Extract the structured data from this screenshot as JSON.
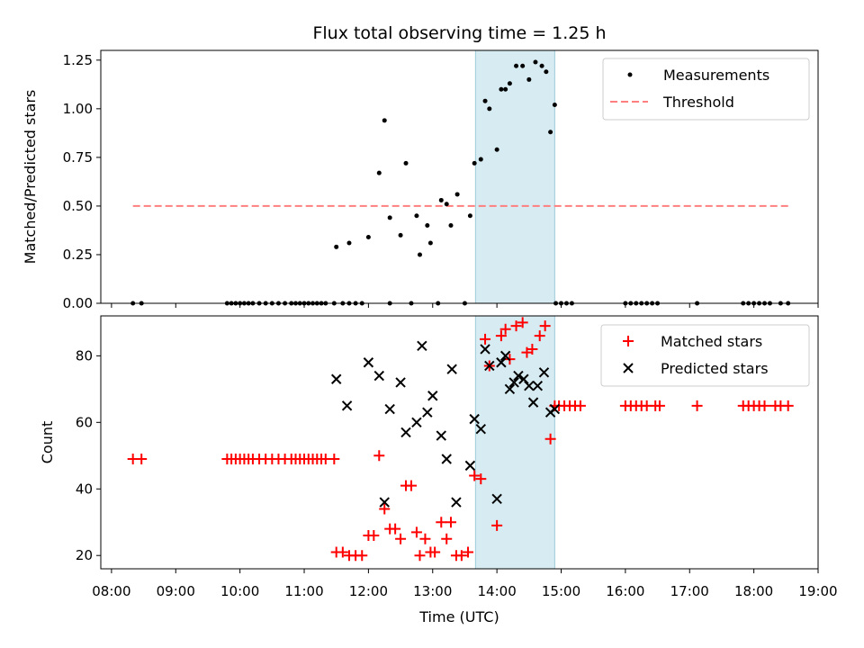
{
  "chart_data": [
    {
      "type": "scatter",
      "title": "Flux total observing time = 1.25 h",
      "xlabel": "",
      "ylabel": "Matched/Predicted stars",
      "xlim": [
        "08:00",
        "19:00"
      ],
      "ylim": [
        0,
        1.3
      ],
      "xticks": [
        "08:00",
        "09:00",
        "10:00",
        "11:00",
        "12:00",
        "13:00",
        "14:00",
        "15:00",
        "16:00",
        "17:00",
        "18:00",
        "19:00"
      ],
      "yticks": [
        "0.00",
        "0.25",
        "0.50",
        "0.75",
        "1.00",
        "1.25"
      ],
      "shaded_region": {
        "start": "13:40",
        "end": "14:54",
        "color": "#add8e6"
      },
      "legend_position": "top-right",
      "threshold": {
        "name": "Threshold",
        "value": 0.5,
        "x_start": "08:20",
        "x_end": "18:32",
        "color": "#ff7f7f"
      },
      "series": [
        {
          "name": "Measurements",
          "color": "#000000",
          "points": [
            [
              "08:20",
              0
            ],
            [
              "08:28",
              0
            ],
            [
              "09:48",
              0
            ],
            [
              "09:52",
              0
            ],
            [
              "09:56",
              0
            ],
            [
              "10:00",
              0
            ],
            [
              "10:04",
              0
            ],
            [
              "10:08",
              0
            ],
            [
              "10:12",
              0
            ],
            [
              "10:18",
              0
            ],
            [
              "10:24",
              0
            ],
            [
              "10:30",
              0
            ],
            [
              "10:36",
              0
            ],
            [
              "10:42",
              0
            ],
            [
              "10:48",
              0
            ],
            [
              "10:52",
              0
            ],
            [
              "10:56",
              0
            ],
            [
              "11:00",
              0
            ],
            [
              "11:04",
              0
            ],
            [
              "11:08",
              0
            ],
            [
              "11:12",
              0
            ],
            [
              "11:16",
              0
            ],
            [
              "11:20",
              0
            ],
            [
              "11:28",
              0
            ],
            [
              "11:36",
              0
            ],
            [
              "11:42",
              0
            ],
            [
              "11:48",
              0
            ],
            [
              "11:54",
              0
            ],
            [
              "12:20",
              0
            ],
            [
              "12:40",
              0
            ],
            [
              "13:05",
              0
            ],
            [
              "13:30",
              0
            ],
            [
              "14:55",
              0
            ],
            [
              "15:00",
              0
            ],
            [
              "15:05",
              0
            ],
            [
              "15:10",
              0
            ],
            [
              "16:00",
              0
            ],
            [
              "16:05",
              0
            ],
            [
              "16:10",
              0
            ],
            [
              "16:15",
              0
            ],
            [
              "16:20",
              0
            ],
            [
              "16:25",
              0
            ],
            [
              "16:30",
              0
            ],
            [
              "17:07",
              0
            ],
            [
              "17:50",
              0
            ],
            [
              "17:55",
              0
            ],
            [
              "18:00",
              0
            ],
            [
              "18:05",
              0
            ],
            [
              "18:10",
              0
            ],
            [
              "18:15",
              0
            ],
            [
              "18:25",
              0
            ],
            [
              "18:32",
              0
            ],
            [
              "11:30",
              0.29
            ],
            [
              "11:42",
              0.31
            ],
            [
              "12:00",
              0.34
            ],
            [
              "12:10",
              0.67
            ],
            [
              "12:15",
              0.94
            ],
            [
              "12:20",
              0.44
            ],
            [
              "12:30",
              0.35
            ],
            [
              "12:35",
              0.72
            ],
            [
              "12:45",
              0.45
            ],
            [
              "12:48",
              0.25
            ],
            [
              "12:55",
              0.4
            ],
            [
              "12:58",
              0.31
            ],
            [
              "13:08",
              0.53
            ],
            [
              "13:13",
              0.51
            ],
            [
              "13:17",
              0.4
            ],
            [
              "13:23",
              0.56
            ],
            [
              "13:35",
              0.45
            ],
            [
              "13:39",
              0.72
            ],
            [
              "13:45",
              0.74
            ],
            [
              "13:49",
              1.04
            ],
            [
              "13:53",
              1.0
            ],
            [
              "14:00",
              0.79
            ],
            [
              "14:04",
              1.1
            ],
            [
              "14:08",
              1.1
            ],
            [
              "14:12",
              1.13
            ],
            [
              "14:18",
              1.22
            ],
            [
              "14:24",
              1.22
            ],
            [
              "14:30",
              1.15
            ],
            [
              "14:36",
              1.24
            ],
            [
              "14:42",
              1.22
            ],
            [
              "14:46",
              1.19
            ],
            [
              "14:50",
              0.88
            ],
            [
              "14:54",
              1.02
            ]
          ]
        }
      ]
    },
    {
      "type": "scatter",
      "title": "",
      "xlabel": "Time (UTC)",
      "ylabel": "Count",
      "xlim": [
        "08:00",
        "19:00"
      ],
      "ylim": [
        16,
        92
      ],
      "xticks": [
        "08:00",
        "09:00",
        "10:00",
        "11:00",
        "12:00",
        "13:00",
        "14:00",
        "15:00",
        "16:00",
        "17:00",
        "18:00",
        "19:00"
      ],
      "yticks": [
        "20",
        "40",
        "60",
        "80"
      ],
      "shaded_region": {
        "start": "13:40",
        "end": "14:54",
        "color": "#add8e6"
      },
      "legend_position": "top-right",
      "series": [
        {
          "name": "Matched stars",
          "color": "#ff0000",
          "marker": "plus",
          "points": [
            [
              "08:20",
              49
            ],
            [
              "08:28",
              49
            ],
            [
              "09:48",
              49
            ],
            [
              "09:52",
              49
            ],
            [
              "09:56",
              49
            ],
            [
              "10:00",
              49
            ],
            [
              "10:04",
              49
            ],
            [
              "10:08",
              49
            ],
            [
              "10:12",
              49
            ],
            [
              "10:18",
              49
            ],
            [
              "10:24",
              49
            ],
            [
              "10:30",
              49
            ],
            [
              "10:36",
              49
            ],
            [
              "10:42",
              49
            ],
            [
              "10:48",
              49
            ],
            [
              "10:52",
              49
            ],
            [
              "10:56",
              49
            ],
            [
              "11:00",
              49
            ],
            [
              "11:04",
              49
            ],
            [
              "11:08",
              49
            ],
            [
              "11:12",
              49
            ],
            [
              "11:16",
              49
            ],
            [
              "11:20",
              49
            ],
            [
              "11:28",
              49
            ],
            [
              "11:30",
              21
            ],
            [
              "11:36",
              21
            ],
            [
              "11:42",
              20
            ],
            [
              "11:48",
              20
            ],
            [
              "11:54",
              20
            ],
            [
              "12:00",
              26
            ],
            [
              "12:05",
              26
            ],
            [
              "12:10",
              50
            ],
            [
              "12:15",
              34
            ],
            [
              "12:20",
              28
            ],
            [
              "12:25",
              28
            ],
            [
              "12:30",
              25
            ],
            [
              "12:35",
              41
            ],
            [
              "12:40",
              41
            ],
            [
              "12:45",
              27
            ],
            [
              "12:48",
              20
            ],
            [
              "12:53",
              25
            ],
            [
              "12:58",
              21
            ],
            [
              "13:02",
              21
            ],
            [
              "13:08",
              30
            ],
            [
              "13:13",
              25
            ],
            [
              "13:17",
              30
            ],
            [
              "13:22",
              20
            ],
            [
              "13:27",
              20
            ],
            [
              "13:33",
              21
            ],
            [
              "13:39",
              44
            ],
            [
              "13:45",
              43
            ],
            [
              "13:49",
              85
            ],
            [
              "13:53",
              77
            ],
            [
              "14:00",
              29
            ],
            [
              "14:04",
              86
            ],
            [
              "14:08",
              88
            ],
            [
              "14:12",
              79
            ],
            [
              "14:18",
              89
            ],
            [
              "14:24",
              90
            ],
            [
              "14:28",
              81
            ],
            [
              "14:33",
              82
            ],
            [
              "14:40",
              86
            ],
            [
              "14:45",
              89
            ],
            [
              "14:50",
              55
            ],
            [
              "14:54",
              65
            ],
            [
              "14:58",
              65
            ],
            [
              "15:03",
              65
            ],
            [
              "15:08",
              65
            ],
            [
              "15:13",
              65
            ],
            [
              "15:18",
              65
            ],
            [
              "16:00",
              65
            ],
            [
              "16:05",
              65
            ],
            [
              "16:10",
              65
            ],
            [
              "16:15",
              65
            ],
            [
              "16:20",
              65
            ],
            [
              "16:28",
              65
            ],
            [
              "16:32",
              65
            ],
            [
              "17:07",
              65
            ],
            [
              "17:50",
              65
            ],
            [
              "17:55",
              65
            ],
            [
              "18:00",
              65
            ],
            [
              "18:05",
              65
            ],
            [
              "18:10",
              65
            ],
            [
              "18:20",
              65
            ],
            [
              "18:25",
              65
            ],
            [
              "18:32",
              65
            ]
          ]
        },
        {
          "name": "Predicted stars",
          "color": "#000000",
          "marker": "x",
          "points": [
            [
              "11:30",
              73
            ],
            [
              "11:40",
              65
            ],
            [
              "12:00",
              78
            ],
            [
              "12:10",
              74
            ],
            [
              "12:15",
              36
            ],
            [
              "12:20",
              64
            ],
            [
              "12:30",
              72
            ],
            [
              "12:35",
              57
            ],
            [
              "12:45",
              60
            ],
            [
              "12:50",
              83
            ],
            [
              "12:55",
              63
            ],
            [
              "13:00",
              68
            ],
            [
              "13:08",
              56
            ],
            [
              "13:13",
              49
            ],
            [
              "13:18",
              76
            ],
            [
              "13:22",
              36
            ],
            [
              "13:35",
              47
            ],
            [
              "13:39",
              61
            ],
            [
              "13:45",
              58
            ],
            [
              "13:49",
              82
            ],
            [
              "13:53",
              77
            ],
            [
              "14:00",
              37
            ],
            [
              "14:04",
              78
            ],
            [
              "14:08",
              80
            ],
            [
              "14:12",
              70
            ],
            [
              "14:16",
              72
            ],
            [
              "14:20",
              74
            ],
            [
              "14:25",
              73
            ],
            [
              "14:30",
              71
            ],
            [
              "14:34",
              66
            ],
            [
              "14:38",
              71
            ],
            [
              "14:44",
              75
            ],
            [
              "14:50",
              63
            ],
            [
              "14:54",
              64
            ]
          ]
        }
      ]
    }
  ]
}
